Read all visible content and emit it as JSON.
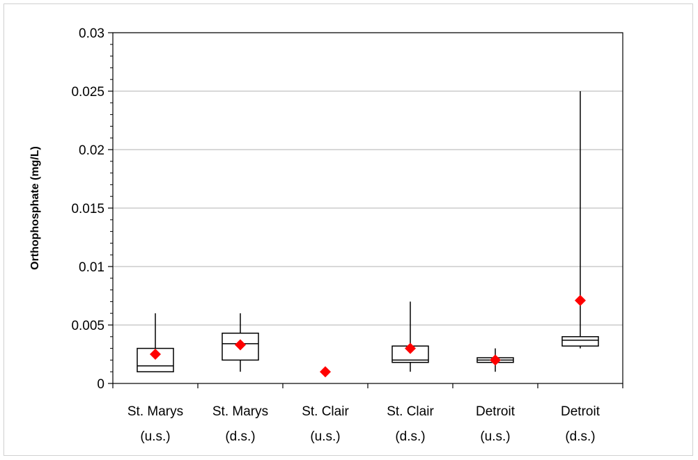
{
  "chart_data": {
    "type": "boxplot",
    "title": "",
    "xlabel": "",
    "ylabel": "Orthophosphate (mg/L)",
    "ylim": [
      0,
      0.03
    ],
    "yticks": [
      "0",
      "0.005",
      "0.01",
      "0.015",
      "0.02",
      "0.025",
      "0.03"
    ],
    "ytick_values": [
      0,
      0.005,
      0.01,
      0.015,
      0.02,
      0.025,
      0.03
    ],
    "grid": true,
    "categories": [
      {
        "line1": "St. Marys",
        "line2": "(u.s.)"
      },
      {
        "line1": "St. Marys",
        "line2": "(d.s.)"
      },
      {
        "line1": "St. Clair",
        "line2": "(u.s.)"
      },
      {
        "line1": "St. Clair",
        "line2": "(d.s.)"
      },
      {
        "line1": "Detroit",
        "line2": "(u.s.)"
      },
      {
        "line1": "Detroit",
        "line2": "(d.s.)"
      }
    ],
    "boxes": [
      {
        "min": 0.001,
        "q1": 0.001,
        "median": 0.0015,
        "q3": 0.003,
        "max": 0.006,
        "mean": 0.0025
      },
      {
        "min": 0.001,
        "q1": 0.002,
        "median": 0.0034,
        "q3": 0.0043,
        "max": 0.006,
        "mean": 0.0033
      },
      {
        "min": 0.001,
        "q1": 0.001,
        "median": 0.001,
        "q3": 0.001,
        "max": 0.001,
        "mean": 0.001
      },
      {
        "min": 0.001,
        "q1": 0.0018,
        "median": 0.002,
        "q3": 0.0032,
        "max": 0.007,
        "mean": 0.003
      },
      {
        "min": 0.001,
        "q1": 0.0018,
        "median": 0.002,
        "q3": 0.0022,
        "max": 0.003,
        "mean": 0.002
      },
      {
        "min": 0.003,
        "q1": 0.0032,
        "median": 0.0037,
        "q3": 0.004,
        "max": 0.025,
        "mean": 0.0071
      }
    ],
    "colors": {
      "mean_marker": "#ff0000",
      "box": "#000000",
      "grid": "#c0c0c0"
    }
  }
}
